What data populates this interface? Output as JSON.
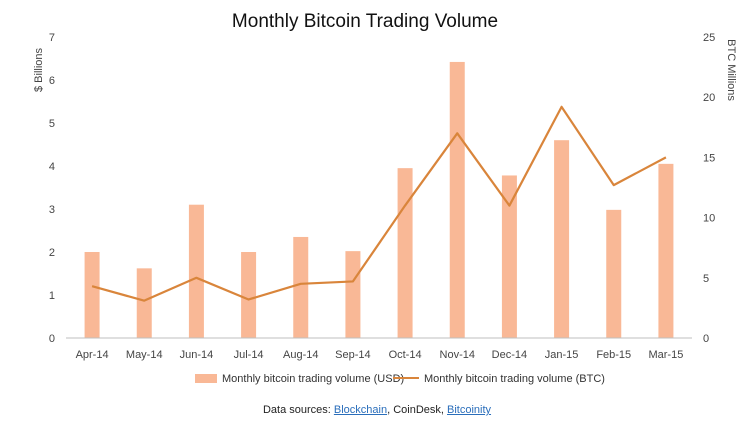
{
  "chart_data": {
    "type": "bar-line",
    "title": "Monthly Bitcoin Trading Volume",
    "categories": [
      "Apr-14",
      "May-14",
      "Jun-14",
      "Jul-14",
      "Aug-14",
      "Sep-14",
      "Oct-14",
      "Nov-14",
      "Dec-14",
      "Jan-15",
      "Feb-15",
      "Mar-15"
    ],
    "series": [
      {
        "name": "Monthly bitcoin trading volume (USD)",
        "type": "bar",
        "axis": "left",
        "color": "#f9b896",
        "values": [
          2.0,
          1.62,
          3.1,
          2.0,
          2.35,
          2.02,
          3.95,
          6.42,
          3.78,
          4.6,
          2.98,
          4.05
        ]
      },
      {
        "name": "Monthly bitcoin trading volume (BTC)",
        "type": "line",
        "axis": "right",
        "color": "#d9853b",
        "values": [
          4.3,
          3.1,
          5.0,
          3.2,
          4.5,
          4.7,
          11.0,
          17.0,
          11.0,
          19.2,
          12.7,
          15.0
        ]
      }
    ],
    "y_left": {
      "label": "$ Billions",
      "min": 0,
      "max": 7,
      "ticks": [
        "0",
        "1",
        "2",
        "3",
        "4",
        "5",
        "6",
        "7"
      ]
    },
    "y_right": {
      "label": "BTC Millions",
      "min": 0,
      "max": 25,
      "ticks": [
        "0",
        "5",
        "10",
        "15",
        "20",
        "25"
      ]
    },
    "grid": false,
    "legend_position": "bottom"
  },
  "footer": {
    "prefix": "Data sources: ",
    "source_1": "Blockchain",
    "separator_1": ", CoinDesk, ",
    "source_2": "Bitcoinity"
  }
}
